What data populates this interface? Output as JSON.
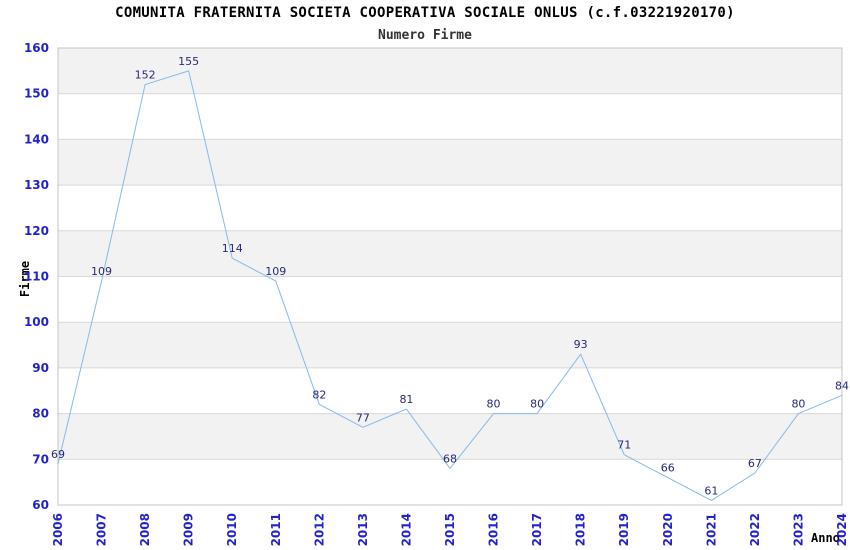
{
  "chart_data": {
    "type": "line",
    "title": "COMUNITA FRATERNITA SOCIETA COOPERATIVA SOCIALE ONLUS (c.f.03221920170)",
    "subtitle": "Numero Firme",
    "xlabel": "Anno",
    "ylabel": "Firme",
    "x": [
      2006,
      2007,
      2008,
      2009,
      2010,
      2011,
      2012,
      2013,
      2014,
      2015,
      2016,
      2017,
      2018,
      2019,
      2020,
      2021,
      2022,
      2023,
      2024
    ],
    "values": [
      69,
      109,
      152,
      155,
      114,
      109,
      82,
      77,
      81,
      68,
      80,
      80,
      93,
      71,
      66,
      61,
      67,
      80,
      84
    ],
    "ylim": [
      60,
      160
    ],
    "ytick_step": 10,
    "grid": true,
    "legend": "none",
    "band_pattern": "alternating horizontal bands, gray on odd decades (70-80, 90-100, 110-120, 130-140, 150-160)",
    "colors": {
      "line": "#86b9ea",
      "data_label": "#282878",
      "tick_label": "#2222cc",
      "band": "#f2f2f2",
      "grid": "#d8d8d8",
      "border": "#c4c4c4",
      "title": "#000000",
      "subtitle": "#333333",
      "axis_title": "#000000",
      "background": "#ffffff"
    }
  }
}
